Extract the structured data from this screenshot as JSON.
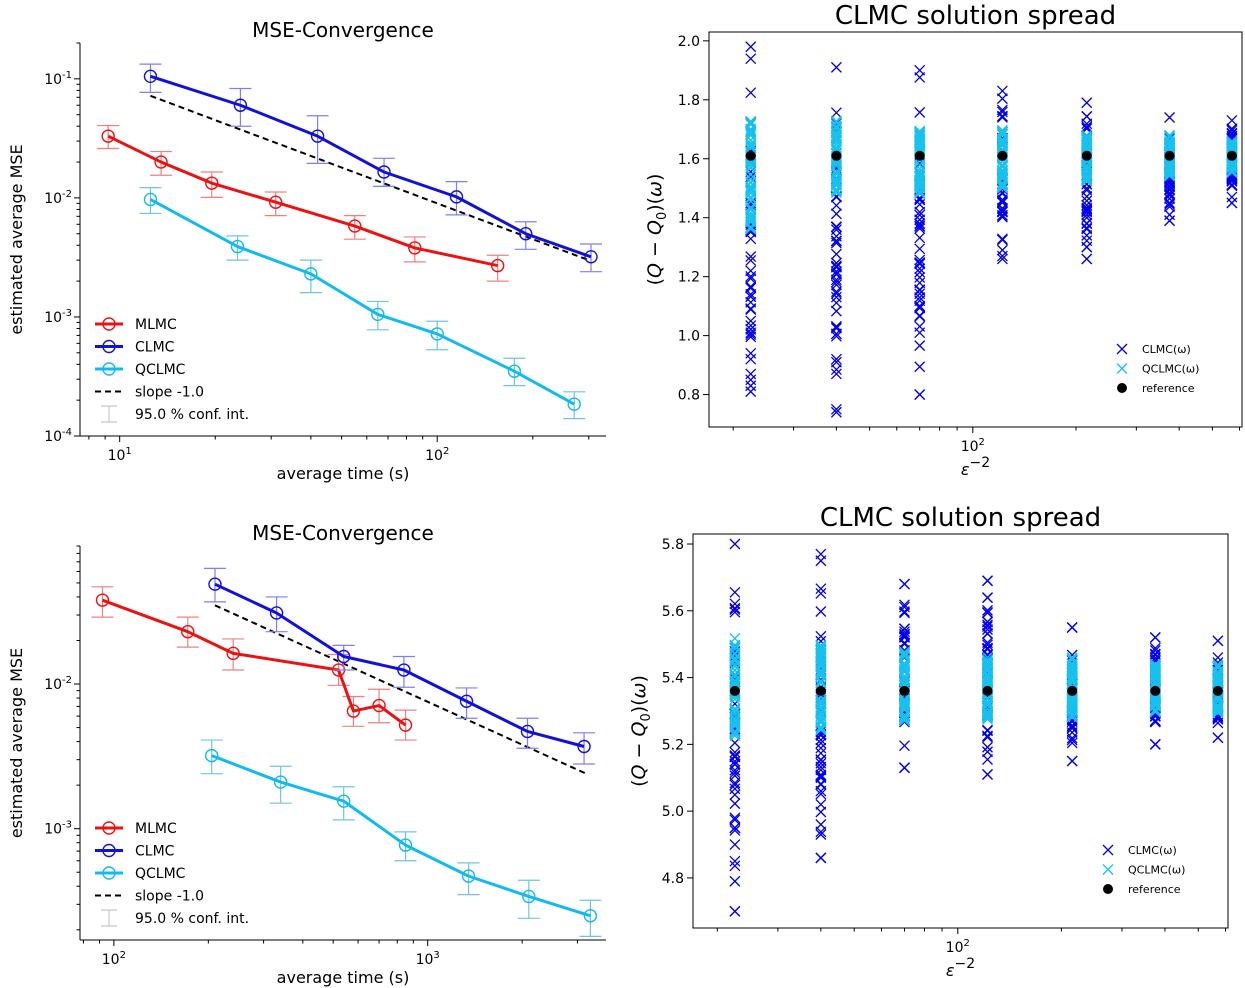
{
  "chart_data": [
    {
      "type": "line",
      "title": "MSE-Convergence",
      "xlabel": "average time (s)",
      "ylabel": "estimated average MSE",
      "xscale": "log",
      "yscale": "log",
      "xlim": [
        7.5,
        340
      ],
      "ylim": [
        0.0001,
        0.2
      ],
      "xticks": [
        {
          "v": 10,
          "label": "10^1"
        },
        {
          "v": 100,
          "label": "10^2"
        }
      ],
      "yticks": [
        {
          "v": 0.0001,
          "label": "10^-4"
        },
        {
          "v": 0.001,
          "label": "10^-3"
        },
        {
          "v": 0.01,
          "label": "10^-2"
        },
        {
          "v": 0.1,
          "label": "10^-1"
        }
      ],
      "series": [
        {
          "name": "MLMC",
          "color": "#ee1111",
          "err_color": "#f08080",
          "x": [
            9.2,
            13.5,
            19.5,
            31,
            55,
            85,
            155
          ],
          "y": [
            0.033,
            0.02,
            0.0133,
            0.0092,
            0.0058,
            0.0038,
            0.0027
          ],
          "lo": [
            0.026,
            0.0155,
            0.0101,
            0.0071,
            0.0045,
            0.0029,
            0.002
          ],
          "hi": [
            0.0405,
            0.0245,
            0.0165,
            0.0112,
            0.0071,
            0.0047,
            0.0033
          ]
        },
        {
          "name": "CLMC",
          "color": "#1111dd",
          "err_color": "#7f7ff5",
          "x": [
            12.5,
            24,
            42,
            68,
            115,
            190,
            305
          ],
          "y": [
            0.105,
            0.06,
            0.033,
            0.0165,
            0.0102,
            0.005,
            0.0032
          ],
          "lo": [
            0.077,
            0.04,
            0.0195,
            0.0125,
            0.0072,
            0.0037,
            0.0024
          ],
          "hi": [
            0.133,
            0.083,
            0.049,
            0.0215,
            0.0137,
            0.0063,
            0.0041
          ]
        },
        {
          "name": "QCLMC",
          "color": "#11bbee",
          "err_color": "#6fc6dc",
          "x": [
            12.5,
            23.5,
            40,
            65,
            100,
            175,
            270
          ],
          "y": [
            0.0097,
            0.0039,
            0.0023,
            0.00105,
            0.00072,
            0.00035,
            0.000185
          ],
          "lo": [
            0.0074,
            0.003,
            0.0016,
            0.00078,
            0.00053,
            0.000265,
            0.00014
          ],
          "hi": [
            0.0122,
            0.0048,
            0.003,
            0.00135,
            0.00092,
            0.00045,
            0.000235
          ]
        }
      ],
      "reference_line": {
        "name": "slope -1.0",
        "x": [
          12.5,
          300
        ],
        "y": [
          0.072,
          0.003
        ]
      },
      "legend": {
        "position": "lower-left",
        "ci_label": "95.0 % conf. int."
      }
    },
    {
      "type": "scatter",
      "title": "CLMC solution spread",
      "xlabel": "ε^-2",
      "ylabel": "(Q − Q0)(ω)",
      "xscale": "log",
      "xlim": [
        17,
        610
      ],
      "ylim": [
        0.69,
        2.03
      ],
      "xticks": [
        {
          "v": 100,
          "label": "10^2"
        }
      ],
      "yticks": [
        0.8,
        1.0,
        1.2,
        1.4,
        1.6,
        1.8,
        2.0
      ],
      "x": [
        22.5,
        40,
        70,
        122,
        215,
        375,
        570
      ],
      "reference": 1.61,
      "series": [
        {
          "name": "CLMC(ω)",
          "color": "#0000ee",
          "min": [
            0.81,
            0.74,
            0.8,
            1.26,
            1.26,
            1.39,
            1.45
          ],
          "max": [
            1.98,
            1.91,
            1.9,
            1.83,
            1.79,
            1.74,
            1.73
          ],
          "outliers": [
            [
              0.83,
              0.85,
              0.87,
              0.92,
              0.94,
              1.01
            ],
            [
              0.75,
              0.87,
              0.91,
              0.92,
              1.03
            ],
            [
              0.8,
              1.01
            ],
            [
              1.27,
              1.29
            ],
            [
              1.26,
              1.3,
              1.34,
              1.4,
              1.41
            ],
            [
              1.39,
              1.41
            ],
            [
              1.45,
              1.47
            ]
          ]
        },
        {
          "name": "QCLMC(ω)",
          "color": "#16c2ee",
          "min": [
            1.36,
            1.48,
            1.48,
            1.5,
            1.52,
            1.54,
            1.55
          ],
          "max": [
            1.73,
            1.73,
            1.7,
            1.7,
            1.68,
            1.68,
            1.66
          ]
        }
      ],
      "reference_label": "reference",
      "legend": {
        "position": "lower-right"
      }
    },
    {
      "type": "line",
      "title": "MSE-Convergence",
      "xlabel": "average time (s)",
      "ylabel": "estimated average MSE",
      "xscale": "log",
      "yscale": "log",
      "xlim": [
        78,
        3700
      ],
      "ylim": [
        0.00017,
        0.09
      ],
      "xticks": [
        {
          "v": 100,
          "label": "10^2"
        },
        {
          "v": 1000,
          "label": "10^3"
        }
      ],
      "yticks": [
        {
          "v": 0.001,
          "label": "10^-3"
        },
        {
          "v": 0.01,
          "label": "10^-2"
        }
      ],
      "series": [
        {
          "name": "MLMC",
          "color": "#ee1111",
          "err_color": "#f08080",
          "x": [
            92,
            172,
            240,
            520,
            580,
            700,
            850
          ],
          "y": [
            0.038,
            0.023,
            0.0163,
            0.0125,
            0.0065,
            0.0071,
            0.0052
          ],
          "lo": [
            0.029,
            0.018,
            0.0125,
            0.0098,
            0.0051,
            0.0054,
            0.0041
          ],
          "hi": [
            0.047,
            0.029,
            0.0205,
            0.016,
            0.0082,
            0.0092,
            0.0066
          ]
        },
        {
          "name": "CLMC",
          "color": "#1111dd",
          "err_color": "#7f7ff5",
          "x": [
            210,
            330,
            540,
            840,
            1330,
            2080,
            3150
          ],
          "y": [
            0.049,
            0.031,
            0.0155,
            0.0125,
            0.0076,
            0.0047,
            0.0037
          ],
          "lo": [
            0.037,
            0.023,
            0.0125,
            0.0095,
            0.0058,
            0.0036,
            0.0028
          ],
          "hi": [
            0.063,
            0.04,
            0.0185,
            0.0155,
            0.0094,
            0.0058,
            0.0046
          ]
        },
        {
          "name": "QCLMC",
          "color": "#11bbee",
          "err_color": "#6fc6dc",
          "x": [
            205,
            340,
            540,
            850,
            1350,
            2100,
            3300
          ],
          "y": [
            0.0032,
            0.0021,
            0.00155,
            0.00077,
            0.00047,
            0.00034,
            0.00025
          ],
          "lo": [
            0.0024,
            0.0015,
            0.00115,
            0.0006,
            0.00035,
            0.00024,
            0.00018
          ],
          "hi": [
            0.0041,
            0.0027,
            0.00195,
            0.00095,
            0.00058,
            0.00044,
            0.00032
          ]
        }
      ],
      "reference_line": {
        "name": "slope -1.0",
        "x": [
          210,
          3200
        ],
        "y": [
          0.035,
          0.0024
        ]
      },
      "legend": {
        "position": "lower-left",
        "ci_label": "95.0 % conf. int."
      }
    },
    {
      "type": "scatter",
      "title": "CLMC solution spread",
      "xlabel": "ε^-2",
      "ylabel": "(Q − Q0)(ω)",
      "xscale": "log",
      "xlim": [
        17,
        610
      ],
      "ylim": [
        4.65,
        5.83
      ],
      "xticks": [
        {
          "v": 100,
          "label": "10^2"
        }
      ],
      "yticks": [
        4.8,
        5.0,
        5.2,
        5.4,
        5.6,
        5.8
      ],
      "x": [
        22.5,
        40,
        70,
        122,
        215,
        375,
        570
      ],
      "reference": 5.36,
      "series": [
        {
          "name": "CLMC(ω)",
          "color": "#0000ee",
          "min": [
            4.7,
            4.86,
            5.13,
            5.11,
            5.15,
            5.2,
            5.22
          ],
          "max": [
            5.8,
            5.77,
            5.68,
            5.69,
            5.55,
            5.52,
            5.51
          ],
          "outliers": [
            [
              4.7,
              4.79,
              4.85,
              4.9,
              4.95,
              4.98
            ],
            [
              4.86,
              4.93,
              4.96,
              5.02,
              5.06,
              5.1
            ],
            [
              5.13,
              5.68
            ],
            [
              5.11,
              5.69
            ],
            [
              5.15,
              5.55
            ],
            [
              5.2,
              5.52
            ],
            [
              5.22,
              5.51
            ]
          ]
        },
        {
          "name": "QCLMC(ω)",
          "color": "#16c2ee",
          "min": [
            5.22,
            5.24,
            5.27,
            5.27,
            5.28,
            5.29,
            5.29
          ],
          "max": [
            5.52,
            5.5,
            5.48,
            5.46,
            5.46,
            5.44,
            5.44
          ]
        }
      ],
      "reference_label": "reference",
      "legend": {
        "position": "lower-right"
      }
    }
  ]
}
